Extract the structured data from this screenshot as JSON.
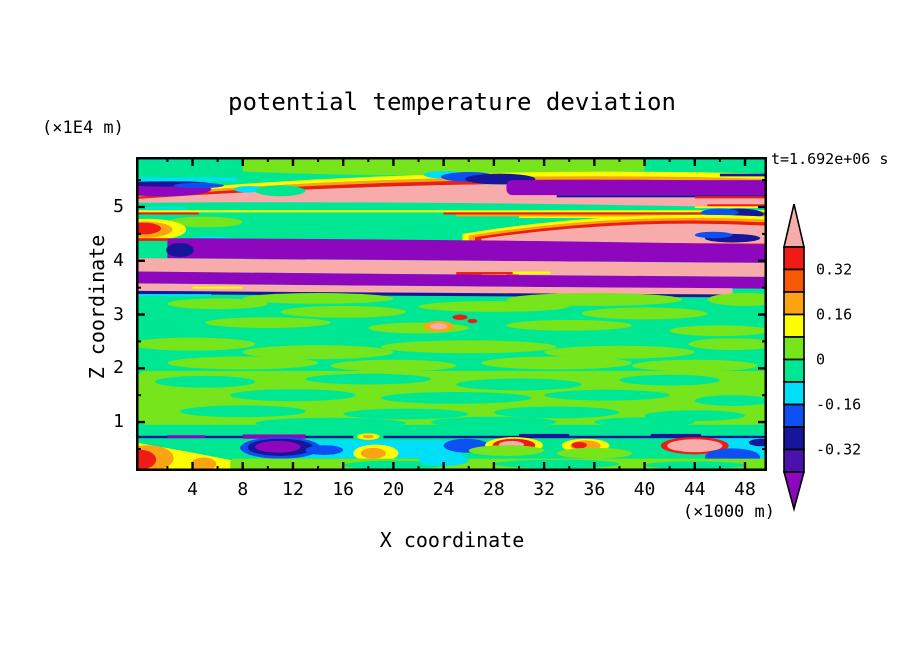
{
  "title": "potential temperature deviation",
  "time_label": "t=1.692e+06 s",
  "axes": {
    "x_label": "X coordinate",
    "x_unit": "(×1000 m)",
    "y_label": "Z coordinate",
    "y_unit": "(×1E4 m)"
  },
  "chart_data": {
    "type": "heatmap",
    "subtype": "filled-contour",
    "title": "potential temperature deviation",
    "annotation": "t=1.692e+06 s",
    "xlabel": "X coordinate",
    "xunit": "(×1000 m)",
    "ylabel": "Z coordinate",
    "yunit": "(×1E4 m)",
    "x_domain": [
      -0.5,
      49.75
    ],
    "z_domain": [
      0.09,
      5.93
    ],
    "x_major_ticks": [
      4,
      8,
      12,
      16,
      20,
      24,
      28,
      32,
      36,
      40,
      44,
      48
    ],
    "x_minor_ticks": [
      2,
      6,
      10,
      14,
      18,
      22,
      26,
      30,
      34,
      38,
      42,
      46,
      50
    ],
    "y_major_ticks": [
      1,
      2,
      3,
      4,
      5
    ],
    "y_minor_ticks": [
      0.5,
      1.5,
      2.5,
      3.5,
      4.5,
      5.5
    ],
    "grid": false,
    "palette": {
      "pink": "#F7ABAB",
      "red": "#EF1C16",
      "orangered": "#F95803",
      "orange": "#FCA313",
      "yellow": "#FCFD02",
      "lime": "#76E51B",
      "green": "#00E794",
      "cyan": "#00DFF8",
      "blue": "#0D4FF0",
      "navy": "#16169B",
      "indigo": "#4A12AA",
      "purple": "#8E06BE",
      "frame": "#000000"
    },
    "colorbar": {
      "position": "right",
      "arrow_top_color": "pink",
      "arrow_bottom_color": "purple",
      "segment_colors": [
        "red",
        "orangered",
        "orange",
        "yellow",
        "lime",
        "green",
        "cyan",
        "blue",
        "navy",
        "indigo"
      ],
      "level_boundaries": [
        0.4,
        0.32,
        0.24,
        0.16,
        0.08,
        0,
        -0.08,
        -0.16,
        -0.24,
        -0.32,
        -0.4
      ],
      "labels": [
        {
          "text": "0.32",
          "boundary": 1
        },
        {
          "text": "0.16",
          "boundary": 3
        },
        {
          "text": "0",
          "boundary": 5
        },
        {
          "text": "-0.16",
          "boundary": 7
        },
        {
          "text": "-0.32",
          "boundary": 9
        }
      ]
    },
    "field_shapes": [
      [
        "r",
        "green",
        -0.5,
        5.93,
        51,
        5.84,
        0
      ],
      [
        "w",
        "lime",
        8,
        40,
        5.93,
        5.93,
        5.93,
        5.66,
        5.5,
        5.68
      ],
      [
        "r",
        "cyan",
        -0.5,
        5.93,
        4,
        0.06,
        0
      ],
      [
        "r",
        "cyan",
        5,
        5.93,
        4,
        0.05,
        0
      ],
      [
        "w",
        "yellow",
        -0.5,
        50,
        5.28,
        5.78,
        5.62,
        5.23,
        5.7,
        5.52
      ],
      [
        "w",
        "orange",
        -0.5,
        50,
        5.23,
        5.7,
        5.52,
        5.19,
        5.64,
        5.46
      ],
      [
        "w",
        "red",
        -0.5,
        50,
        5.19,
        5.64,
        5.46,
        5.15,
        5.55,
        5.4
      ],
      [
        "w",
        "pink",
        -0.5,
        50,
        5.15,
        5.55,
        5.4,
        5.08,
        5.12,
        4.98
      ],
      [
        "e",
        "purple",
        1.5,
        5.33,
        4,
        0.13
      ],
      [
        "e",
        "navy",
        2,
        5.43,
        3.5,
        0.05
      ],
      [
        "e",
        "blue",
        4.5,
        5.4,
        2,
        0.05
      ],
      [
        "r",
        "cyan",
        -0.5,
        5.55,
        8,
        0.07,
        0
      ],
      [
        "e",
        "cyan",
        8.5,
        5.33,
        1.2,
        0.06
      ],
      [
        "e",
        "green",
        11,
        5.3,
        2,
        0.1
      ],
      [
        "e",
        "cyan",
        24,
        5.6,
        1.6,
        0.07
      ],
      [
        "e",
        "blue",
        26,
        5.56,
        2.2,
        0.09
      ],
      [
        "e",
        "navy",
        28.5,
        5.52,
        2.8,
        0.1
      ],
      [
        "r",
        "purple",
        29,
        5.5,
        21.5,
        0.28,
        6
      ],
      [
        "r",
        "navy",
        46,
        5.62,
        4.5,
        0.05,
        0
      ],
      [
        "r",
        "navy",
        33,
        5.22,
        17.5,
        0.04,
        0
      ],
      [
        "r",
        "red",
        44,
        5.2,
        6.5,
        0.04,
        0
      ],
      [
        "r",
        "red",
        45,
        5.05,
        5.5,
        0.035,
        0
      ],
      [
        "r",
        "yellow",
        44,
        5.01,
        6.5,
        0.03,
        0
      ],
      [
        "r",
        "yellow",
        -0.5,
        4.94,
        51,
        0.04,
        0
      ],
      [
        "r",
        "cyan",
        -0.5,
        5.0,
        4,
        0.04,
        0
      ],
      [
        "r",
        "red",
        -0.5,
        4.9,
        5,
        0.04,
        0
      ],
      [
        "r",
        "red",
        24,
        4.9,
        26,
        0.04,
        0
      ],
      [
        "r",
        "orange",
        25,
        4.86,
        18,
        0.035,
        0
      ],
      [
        "r",
        "yellow",
        30,
        4.825,
        12,
        0.03,
        0
      ],
      [
        "e",
        "lime",
        5,
        4.72,
        3,
        0.1
      ],
      [
        "e",
        "navy",
        47.5,
        4.87,
        2.0,
        0.1
      ],
      [
        "e",
        "blue",
        46,
        4.9,
        1.5,
        0.07
      ],
      [
        "w",
        "yellow",
        25.5,
        50,
        4.5,
        4.97,
        4.82,
        4.26,
        4.26,
        4.26
      ],
      [
        "w",
        "orange",
        26,
        50,
        4.47,
        4.91,
        4.76,
        4.28,
        4.28,
        4.28
      ],
      [
        "w",
        "red",
        26.5,
        50,
        4.44,
        4.86,
        4.71,
        4.3,
        4.3,
        4.3
      ],
      [
        "w",
        "pink",
        27,
        50,
        4.41,
        4.8,
        4.65,
        4.38,
        4.33,
        4.32
      ],
      [
        "e",
        "navy",
        47,
        4.42,
        2.2,
        0.08
      ],
      [
        "e",
        "blue",
        45.5,
        4.48,
        1.5,
        0.06
      ],
      [
        "e",
        "yellow",
        0.5,
        4.58,
        3,
        0.2
      ],
      [
        "e",
        "orange",
        0.2,
        4.58,
        2.2,
        0.15
      ],
      [
        "e",
        "red",
        0,
        4.6,
        1.5,
        0.11
      ],
      [
        "r",
        "red",
        -0.5,
        4.42,
        2.5,
        0.05,
        0
      ],
      [
        "e",
        "cyan",
        5.5,
        4.38,
        1.9,
        0.07
      ],
      [
        "e",
        "blue",
        4.5,
        4.33,
        1.6,
        0.08
      ],
      [
        "w",
        "purple",
        2,
        50,
        4.42,
        4.4,
        4.3,
        4.05,
        4.0,
        3.96
      ],
      [
        "e",
        "navy",
        3,
        4.2,
        1.1,
        0.13
      ],
      [
        "r",
        "navy",
        5,
        4.03,
        8,
        0.04,
        0
      ],
      [
        "w",
        "pink",
        -0.5,
        50,
        4.05,
        4.0,
        3.96,
        3.8,
        3.74,
        3.7
      ],
      [
        "r",
        "red",
        25,
        3.79,
        5,
        0.05,
        0
      ],
      [
        "r",
        "yellow",
        29.5,
        3.8,
        3,
        0.05,
        0
      ],
      [
        "r",
        "orange",
        27,
        3.75,
        2,
        0.04,
        0
      ],
      [
        "w",
        "purple",
        -0.5,
        50,
        3.8,
        3.74,
        3.7,
        3.58,
        3.52,
        3.48
      ],
      [
        "w",
        "pink",
        -0.5,
        47,
        3.58,
        3.52,
        3.49,
        3.44,
        3.4,
        3.37
      ],
      [
        "r",
        "yellow",
        4,
        3.52,
        4,
        0.04,
        0
      ],
      [
        "w",
        "navy",
        -0.5,
        48,
        3.44,
        3.4,
        3.37,
        3.38,
        3.34,
        3.32
      ],
      [
        "r",
        "cyan",
        -0.5,
        3.38,
        6,
        0.04,
        0
      ],
      [
        "e",
        "lime",
        48,
        3.28,
        3,
        0.12
      ],
      [
        "e",
        "lime",
        6,
        3.2,
        4,
        0.1
      ],
      [
        "e",
        "lime",
        16,
        3.05,
        5,
        0.11
      ],
      [
        "e",
        "lime",
        28,
        3.15,
        6,
        0.1
      ],
      [
        "e",
        "lime",
        40,
        3.02,
        5,
        0.11
      ],
      [
        "e",
        "lime",
        14,
        3.3,
        6,
        0.1
      ],
      [
        "e",
        "lime",
        36,
        3.28,
        7,
        0.12
      ],
      [
        "e",
        "lime",
        10,
        2.85,
        5,
        0.1
      ],
      [
        "e",
        "lime",
        22,
        2.75,
        4,
        0.1
      ],
      [
        "e",
        "lime",
        34,
        2.8,
        5,
        0.1
      ],
      [
        "e",
        "lime",
        46,
        2.7,
        4,
        0.1
      ],
      [
        "e",
        "lime",
        4,
        2.45,
        5,
        0.12
      ],
      [
        "e",
        "lime",
        14,
        2.3,
        6,
        0.13
      ],
      [
        "e",
        "lime",
        26,
        2.4,
        7,
        0.12
      ],
      [
        "e",
        "lime",
        38,
        2.3,
        6,
        0.12
      ],
      [
        "e",
        "lime",
        47,
        2.45,
        3.5,
        0.11
      ],
      [
        "e",
        "lime",
        8,
        2.1,
        6,
        0.12
      ],
      [
        "e",
        "lime",
        20,
        2.05,
        5,
        0.11
      ],
      [
        "e",
        "lime",
        33,
        2.1,
        6,
        0.12
      ],
      [
        "e",
        "lime",
        44,
        2.05,
        5,
        0.11
      ],
      [
        "r",
        "lime",
        -0.5,
        1.95,
        51,
        1.0,
        10
      ],
      [
        "e",
        "green",
        5,
        1.75,
        4,
        0.11
      ],
      [
        "e",
        "green",
        18,
        1.8,
        5,
        0.1
      ],
      [
        "e",
        "green",
        30,
        1.7,
        5,
        0.11
      ],
      [
        "e",
        "green",
        42,
        1.78,
        4,
        0.1
      ],
      [
        "e",
        "green",
        12,
        1.5,
        5,
        0.11
      ],
      [
        "e",
        "green",
        25,
        1.45,
        6,
        0.11
      ],
      [
        "e",
        "green",
        37,
        1.5,
        5,
        0.1
      ],
      [
        "e",
        "green",
        47,
        1.4,
        3,
        0.1
      ],
      [
        "e",
        "green",
        8,
        1.2,
        5,
        0.11
      ],
      [
        "e",
        "green",
        21,
        1.15,
        5,
        0.1
      ],
      [
        "e",
        "green",
        33,
        1.18,
        5,
        0.11
      ],
      [
        "e",
        "green",
        44,
        1.12,
        4,
        0.1
      ],
      [
        "e",
        "green",
        15,
        0.98,
        6,
        0.1
      ],
      [
        "e",
        "green",
        28,
        1.0,
        5,
        0.1
      ],
      [
        "e",
        "green",
        40,
        1.0,
        4,
        0.09
      ],
      [
        "e",
        "orange",
        23.6,
        2.78,
        1.2,
        0.1
      ],
      [
        "e",
        "pink",
        23.6,
        2.78,
        0.7,
        0.06
      ],
      [
        "e",
        "red",
        25.3,
        2.95,
        0.6,
        0.05
      ],
      [
        "e",
        "red",
        26.3,
        2.88,
        0.4,
        0.04
      ],
      [
        "r",
        "navy",
        -0.5,
        0.745,
        51,
        0.045,
        0
      ],
      [
        "r",
        "purple",
        2,
        0.755,
        3,
        0.05,
        0
      ],
      [
        "r",
        "purple",
        8,
        0.77,
        5,
        0.08,
        0
      ],
      [
        "r",
        "green",
        16.8,
        0.78,
        2.4,
        0.09,
        0
      ],
      [
        "e",
        "yellow",
        18,
        0.73,
        0.9,
        0.06
      ],
      [
        "e",
        "orange",
        18,
        0.73,
        0.45,
        0.035
      ],
      [
        "r",
        "navy",
        30,
        0.78,
        4,
        0.05,
        0
      ],
      [
        "r",
        "navy",
        40.5,
        0.78,
        4,
        0.05,
        0
      ],
      [
        "r",
        "cyan",
        12.5,
        0.66,
        13,
        0.33,
        8
      ],
      [
        "r",
        "cyan",
        44.5,
        0.7,
        6,
        0.26,
        6
      ],
      [
        "r",
        "cyan",
        45.5,
        0.44,
        5.5,
        0.3,
        6
      ],
      [
        "e",
        "blue",
        11,
        0.52,
        3.2,
        0.2
      ],
      [
        "e",
        "navy",
        11,
        0.53,
        2.6,
        0.16
      ],
      [
        "e",
        "purple",
        10.8,
        0.54,
        1.8,
        0.11
      ],
      [
        "e",
        "blue",
        14.5,
        0.48,
        1.5,
        0.09
      ],
      [
        "e",
        "yellow",
        18.6,
        0.42,
        1.8,
        0.16
      ],
      [
        "e",
        "orange",
        18.4,
        0.42,
        1.0,
        0.1
      ],
      [
        "e",
        "blue",
        25.8,
        0.56,
        1.8,
        0.13
      ],
      [
        "e",
        "yellow",
        29.6,
        0.57,
        2.3,
        0.15
      ],
      [
        "e",
        "red",
        29.6,
        0.57,
        1.7,
        0.12
      ],
      [
        "e",
        "pink",
        29.4,
        0.58,
        1.0,
        0.07
      ],
      [
        "e",
        "yellow",
        35.3,
        0.56,
        1.9,
        0.13
      ],
      [
        "e",
        "orange",
        35.3,
        0.56,
        1.2,
        0.1
      ],
      [
        "e",
        "red",
        34.8,
        0.57,
        0.6,
        0.06
      ],
      [
        "e",
        "red",
        44,
        0.56,
        2.7,
        0.16
      ],
      [
        "e",
        "pink",
        44,
        0.56,
        2.2,
        0.12
      ],
      [
        "e",
        "blue",
        47,
        0.35,
        2.2,
        0.16
      ],
      [
        "e",
        "navy",
        49.3,
        0.62,
        1.0,
        0.07
      ],
      [
        "w",
        "yellow",
        -0.5,
        8,
        0.62,
        0.45,
        0.25,
        0.09,
        0.09,
        0.09
      ],
      [
        "e",
        "orange",
        0.5,
        0.33,
        2.0,
        0.24
      ],
      [
        "e",
        "red",
        -0.1,
        0.3,
        1.2,
        0.18
      ],
      [
        "e",
        "orange",
        4.9,
        0.22,
        1.0,
        0.12
      ],
      [
        "r",
        "lime",
        7,
        0.32,
        44,
        0.23,
        4
      ],
      [
        "e",
        "green",
        20,
        0.2,
        4,
        0.08
      ],
      [
        "e",
        "green",
        33,
        0.22,
        5,
        0.08
      ],
      [
        "e",
        "green",
        44,
        0.2,
        4,
        0.07
      ],
      [
        "e",
        "cyan",
        24,
        0.3,
        2.0,
        0.12
      ],
      [
        "e",
        "lime",
        29,
        0.47,
        3,
        0.1
      ],
      [
        "e",
        "lime",
        36,
        0.42,
        3,
        0.1
      ]
    ]
  }
}
